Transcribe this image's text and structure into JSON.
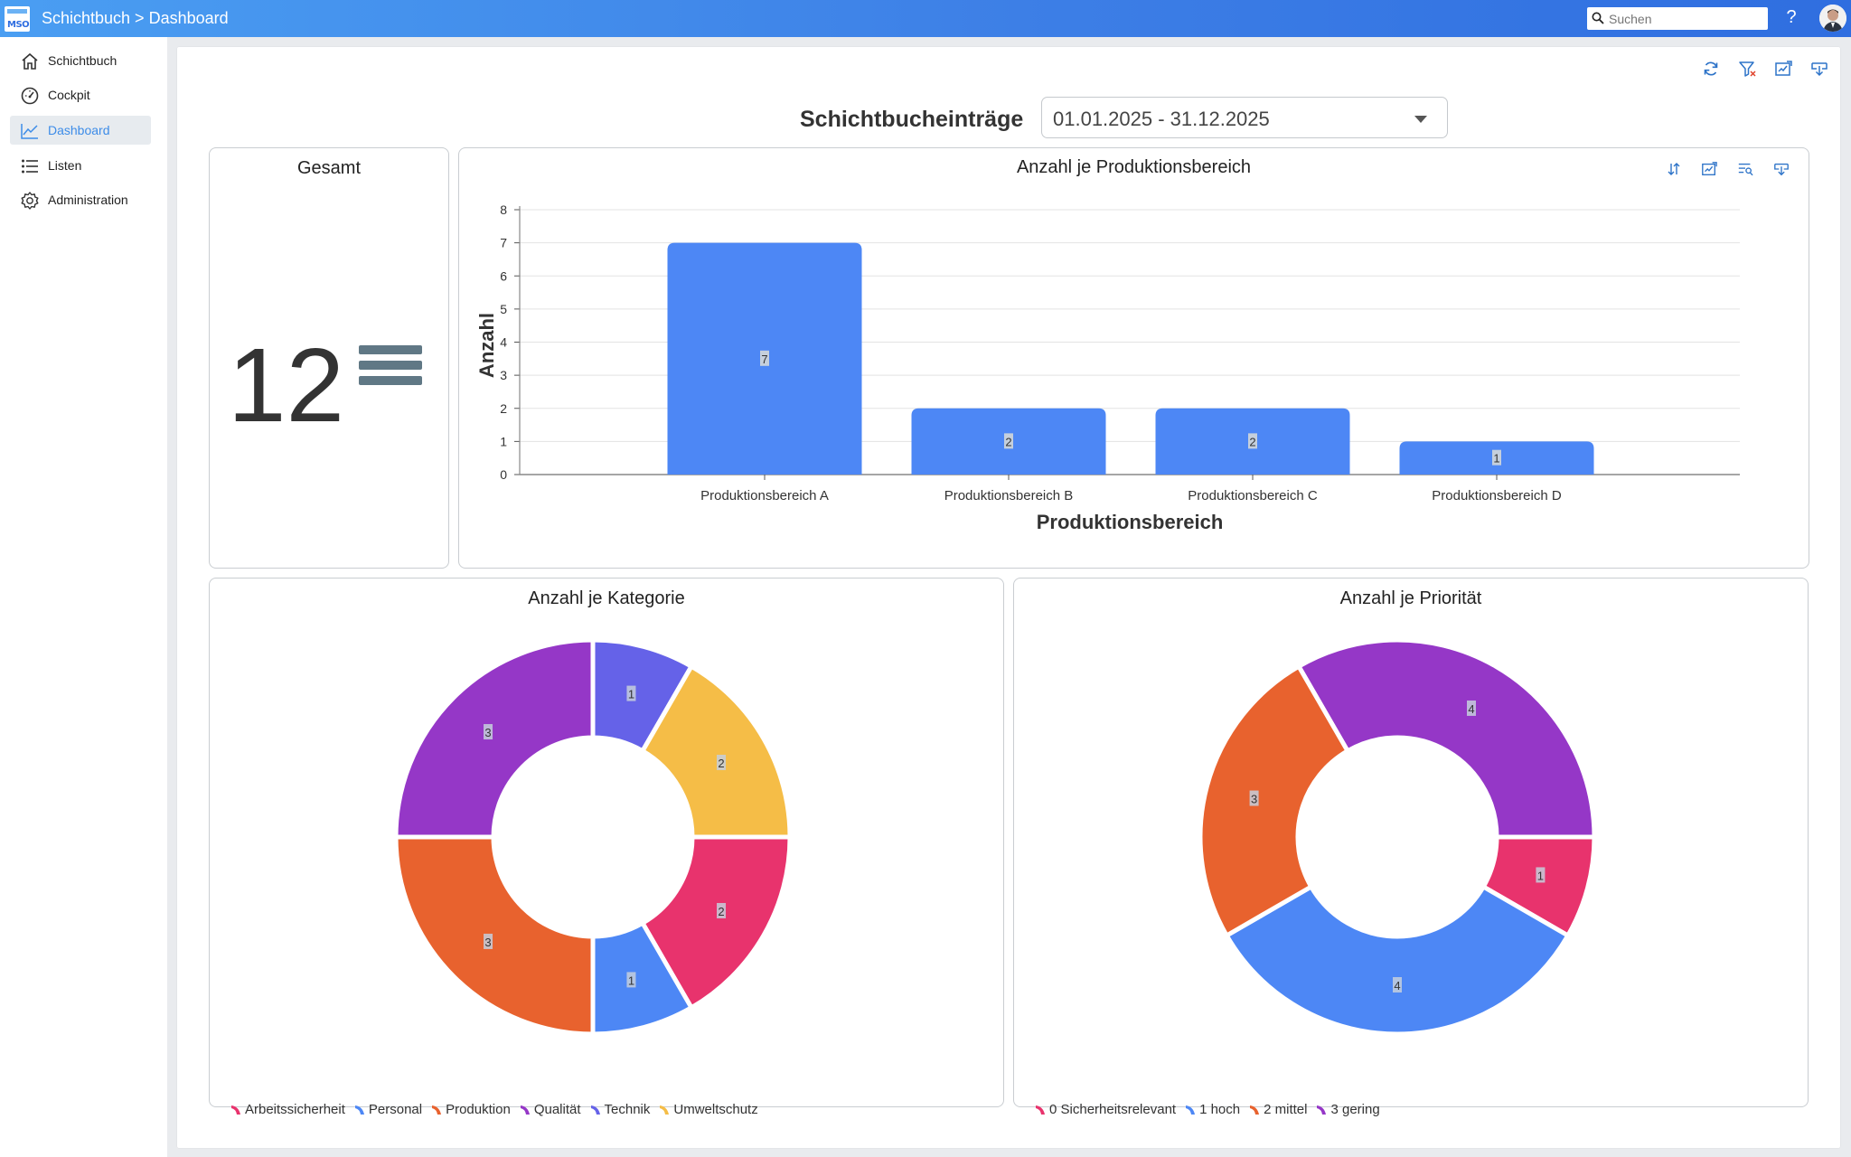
{
  "app": {
    "title": "Schichtbuch > Dashboard",
    "logo_text": "MSO"
  },
  "search": {
    "placeholder": "Suchen",
    "value": ""
  },
  "help_label": "?",
  "sidebar": {
    "items": [
      {
        "label": "Schichtbuch",
        "icon": "home-icon",
        "active": false
      },
      {
        "label": "Cockpit",
        "icon": "speedometer-icon",
        "active": false
      },
      {
        "label": "Dashboard",
        "icon": "line-chart-icon",
        "active": true
      },
      {
        "label": "Listen",
        "icon": "list-icon",
        "active": false
      },
      {
        "label": "Administration",
        "icon": "gear-icon",
        "active": false
      }
    ]
  },
  "dashboard": {
    "title": "Schichtbucheinträge",
    "date_range": "01.01.2025 - 31.12.2025",
    "toolbar_icons": [
      "refresh-icon",
      "filter-clear-icon",
      "edit-chart-icon",
      "export-icon"
    ]
  },
  "total_card": {
    "title": "Gesamt",
    "value": "12"
  },
  "colors": {
    "blue": "#4d87f5",
    "purple": "#9537c7",
    "indigo": "#6562e8",
    "yellow": "#f5bd47",
    "pink": "#e8336d",
    "orange": "#e8622e"
  },
  "chart_data": [
    {
      "type": "bar",
      "title": "Anzahl je Produktionsbereich",
      "xlabel": "Produktionsbereich",
      "ylabel": "Anzahl",
      "categories": [
        "Produktionsbereich A",
        "Produktionsbereich B",
        "Produktionsbereich C",
        "Produktionsbereich D"
      ],
      "values": [
        7,
        2,
        2,
        1
      ],
      "ylim": [
        0,
        8
      ],
      "yticks": [
        "0",
        "1",
        "2",
        "3",
        "4",
        "5",
        "6",
        "7",
        "8"
      ],
      "grid": true,
      "color": "#4d87f5",
      "toolbar_icons": [
        "sort-icon",
        "edit-chart-icon",
        "filter-search-icon",
        "export-icon"
      ]
    },
    {
      "type": "pie",
      "title": "Anzahl je Kategorie",
      "donut": true,
      "legend_position": "bottom-left",
      "slices": [
        {
          "label": "Technik",
          "value": 1,
          "color": "#6562e8"
        },
        {
          "label": "Umweltschutz",
          "value": 2,
          "color": "#f5bd47"
        },
        {
          "label": "Arbeitssicherheit",
          "value": 2,
          "color": "#e8336d"
        },
        {
          "label": "Personal",
          "value": 1,
          "color": "#4d87f5"
        },
        {
          "label": "Produktion",
          "value": 3,
          "color": "#e8622e"
        },
        {
          "label": "Qualität",
          "value": 3,
          "color": "#9537c7"
        }
      ],
      "legend": [
        {
          "label": "Arbeitssicherheit",
          "color": "#e8336d"
        },
        {
          "label": "Personal",
          "color": "#4d87f5"
        },
        {
          "label": "Produktion",
          "color": "#e8622e"
        },
        {
          "label": "Qualität",
          "color": "#9537c7"
        },
        {
          "label": "Technik",
          "color": "#6562e8"
        },
        {
          "label": "Umweltschutz",
          "color": "#f5bd47"
        }
      ]
    },
    {
      "type": "pie",
      "title": "Anzahl je Priorität",
      "donut": true,
      "legend_position": "bottom-left",
      "slices": [
        {
          "label": "3 gering",
          "value": 4,
          "color": "#9537c7"
        },
        {
          "label": "0 Sicherheitsrelevant",
          "value": 1,
          "color": "#e8336d"
        },
        {
          "label": "1 hoch",
          "value": 4,
          "color": "#4d87f5"
        },
        {
          "label": "2 mittel",
          "value": 3,
          "color": "#e8622e"
        }
      ],
      "legend": [
        {
          "label": "0 Sicherheitsrelevant",
          "color": "#e8336d"
        },
        {
          "label": "1 hoch",
          "color": "#4d87f5"
        },
        {
          "label": "2 mittel",
          "color": "#e8622e"
        },
        {
          "label": "3 gering",
          "color": "#9537c7"
        }
      ]
    }
  ]
}
